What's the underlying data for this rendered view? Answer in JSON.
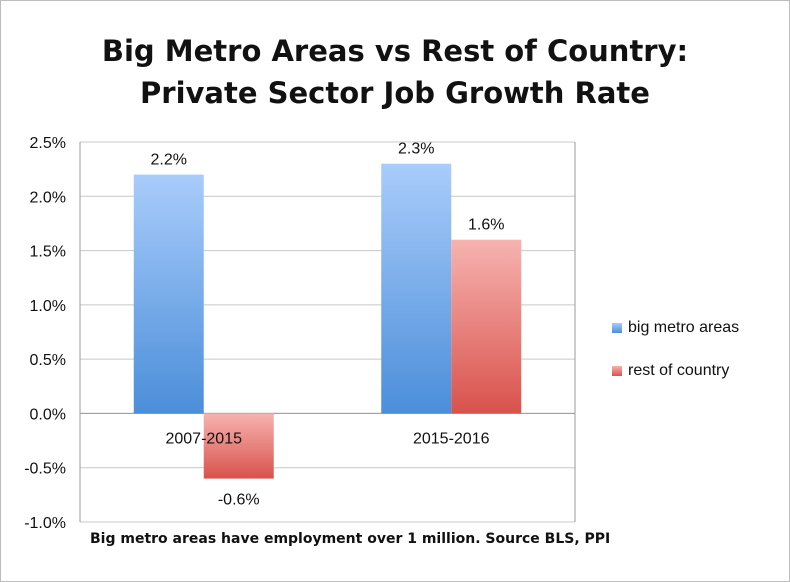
{
  "chart_data": {
    "type": "bar",
    "title_lines": [
      "Big Metro Areas vs Rest of Country:",
      "Private Sector Job Growth Rate"
    ],
    "categories": [
      "2007-2015",
      "2015-2016"
    ],
    "series": [
      {
        "name": "big metro areas",
        "values": [
          2.2,
          2.3
        ],
        "labels": [
          "2.2%",
          "2.3%"
        ],
        "color_top": "#a9ccfb",
        "color_bottom": "#4b8ed9"
      },
      {
        "name": "rest of country",
        "values": [
          -0.6,
          1.6
        ],
        "labels": [
          "-0.6%",
          "1.6%"
        ],
        "color_top": "#f7b3b0",
        "color_bottom": "#d9524c"
      }
    ],
    "y_ticks": [
      "2.5%",
      "2.0%",
      "1.5%",
      "1.0%",
      "0.5%",
      "0.0%",
      "-0.5%",
      "-1.0%"
    ],
    "ylim": [
      -1.0,
      2.5
    ],
    "grid": true,
    "legend_position": "right",
    "footnote": "Big metro areas have employment over 1 million. Source BLS, PPI"
  }
}
